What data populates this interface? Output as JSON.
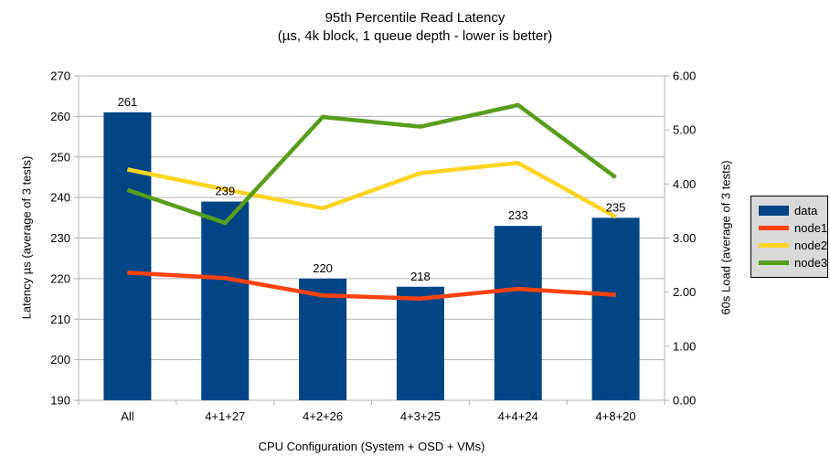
{
  "chart_data": {
    "type": "bar+line",
    "title": "95th Percentile Read Latency",
    "subtitle": "(µs, 4k block, 1 queue depth - lower is better)",
    "categories": [
      "All",
      "4+1+27",
      "4+2+26",
      "4+3+25",
      "4+4+24",
      "4+8+20"
    ],
    "bar_series": {
      "name": "data",
      "axis": "left",
      "color": "#004586",
      "values": [
        261,
        239,
        220,
        218,
        233,
        235
      ],
      "data_labels": [
        "261",
        "239",
        "220",
        "218",
        "233",
        "235"
      ]
    },
    "line_series": [
      {
        "name": "node1",
        "axis": "right",
        "color": "#ff420e",
        "values": [
          2.36,
          2.26,
          1.94,
          1.88,
          2.06,
          1.95
        ]
      },
      {
        "name": "node2",
        "axis": "right",
        "color": "#ffd320",
        "values": [
          4.27,
          3.9,
          3.55,
          4.2,
          4.39,
          3.39
        ]
      },
      {
        "name": "node3",
        "axis": "right",
        "color": "#579d1c",
        "values": [
          3.89,
          3.28,
          5.24,
          5.06,
          5.46,
          4.12
        ]
      }
    ],
    "x_axis": {
      "label": "CPU Configuration (System + OSD + VMs)"
    },
    "left_axis": {
      "label": "Latency µs (average of 3 tests)",
      "min": 190,
      "max": 270,
      "step": 10
    },
    "right_axis": {
      "label": "60s Load (average of 3 tests)",
      "min": 0,
      "max": 6,
      "step": 1,
      "decimals": 2
    },
    "grid": true,
    "legend": {
      "position": "right",
      "entries": [
        "data",
        "node1",
        "node2",
        "node3"
      ]
    }
  },
  "style": {
    "background": "#ffffff",
    "grid_color": "#b3b3b3",
    "axis_color": "#b3b3b3",
    "text_color": "#000000",
    "legend_bg": "#d9d9d9",
    "legend_border": "#000000"
  }
}
